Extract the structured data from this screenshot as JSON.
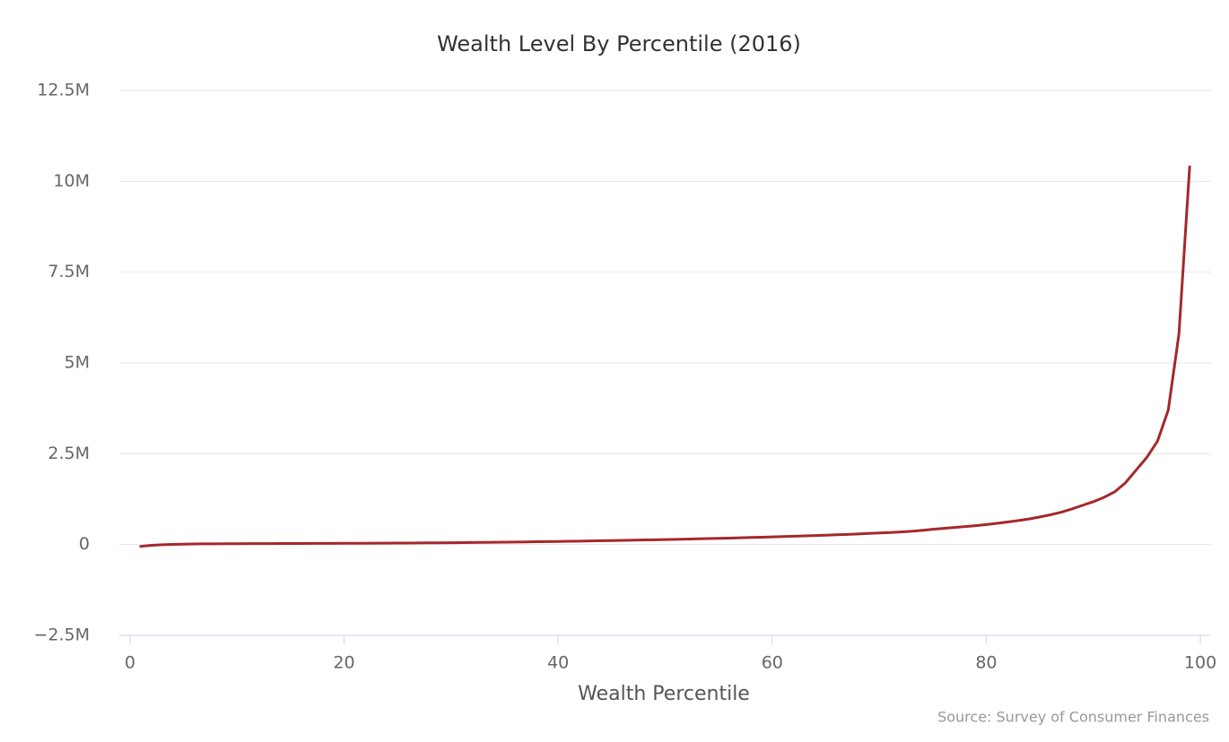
{
  "chart_data": {
    "type": "line",
    "title": "Wealth Level By Percentile (2016)",
    "x_label": "Wealth Percentile",
    "source": "Source: Survey of Consumer Finances",
    "color": "#a4282b",
    "x": [
      1,
      2,
      3,
      4,
      5,
      6,
      7,
      8,
      9,
      10,
      11,
      12,
      13,
      14,
      15,
      16,
      17,
      18,
      19,
      20,
      21,
      22,
      23,
      24,
      25,
      26,
      27,
      28,
      29,
      30,
      31,
      32,
      33,
      34,
      35,
      36,
      37,
      38,
      39,
      40,
      41,
      42,
      43,
      44,
      45,
      46,
      47,
      48,
      49,
      50,
      51,
      52,
      53,
      54,
      55,
      56,
      57,
      58,
      59,
      60,
      61,
      62,
      63,
      64,
      65,
      66,
      67,
      68,
      69,
      70,
      71,
      72,
      73,
      74,
      75,
      76,
      77,
      78,
      79,
      80,
      81,
      82,
      83,
      84,
      85,
      86,
      87,
      88,
      89,
      90,
      91,
      92,
      93,
      94,
      95,
      96,
      97,
      98,
      99
    ],
    "values": [
      -50000,
      -20000,
      -5000,
      5000,
      10000,
      15000,
      18000,
      20000,
      22000,
      24000,
      25000,
      26000,
      27000,
      28000,
      29000,
      30000,
      31000,
      32000,
      33000,
      34000,
      35000,
      36000,
      37000,
      38000,
      40000,
      42000,
      44000,
      46000,
      48000,
      50000,
      53000,
      56000,
      59000,
      62000,
      65000,
      69000,
      73000,
      77000,
      81000,
      85000,
      90000,
      95000,
      100000,
      105000,
      110000,
      115000,
      120000,
      126000,
      132000,
      138000,
      144000,
      150000,
      157000,
      164000,
      171000,
      178000,
      186000,
      194000,
      202000,
      210000,
      219000,
      228000,
      237000,
      247000,
      257000,
      268000,
      280000,
      292000,
      305000,
      318000,
      332000,
      347000,
      365000,
      390000,
      420000,
      445000,
      470000,
      495000,
      520000,
      550000,
      585000,
      620000,
      660000,
      705000,
      760000,
      820000,
      890000,
      980000,
      1080000,
      1180000,
      1300000,
      1450000,
      1700000,
      2050000,
      2400000,
      2850000,
      3700000,
      5800000,
      10400000
    ],
    "xlim": [
      -1,
      101
    ],
    "xticks": [
      0,
      20,
      40,
      60,
      80,
      100
    ],
    "ylim": [
      -2500000,
      12500000
    ],
    "yticks": [
      {
        "value": -2500000,
        "label": "−2.5M"
      },
      0,
      {
        "value": 2500000,
        "label": "2.5M"
      },
      {
        "value": 5000000,
        "label": "5M"
      },
      {
        "value": 7500000,
        "label": "7.5M"
      },
      {
        "value": 10000000,
        "label": "10M"
      },
      {
        "value": 12500000,
        "label": "12.5M"
      }
    ],
    "grid": true
  }
}
